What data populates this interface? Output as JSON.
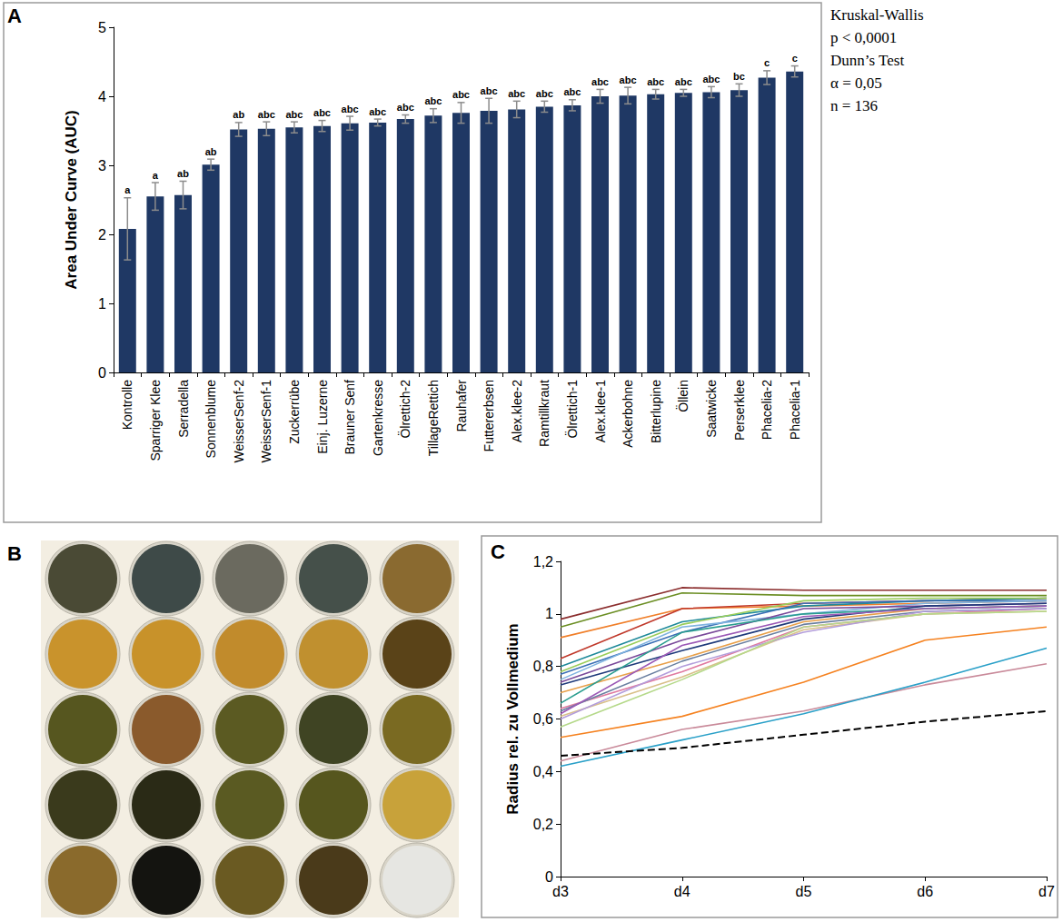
{
  "chart_data": [
    {
      "letter": "A",
      "type": "bar",
      "y_label": "Area Under Curve (AUC)",
      "annotation": [
        "Kruskal-Wallis",
        "p < 0,0001",
        "Dunn’s Test",
        "α = 0,05",
        "n = 136"
      ],
      "categories": [
        "Kontrolle",
        "Sparriger Klee",
        "Serradella",
        "Sonnenblume",
        "WeisserSenf-2",
        "WeisserSenf-1",
        "Zuckerrübe",
        "Einj. Luzerne",
        "Brauner Senf",
        "Gartenkresse",
        "Ölrettich-2",
        "TillageRettich",
        "Rauhafer",
        "Futtererbsen",
        "Alex.klee-2",
        "Ramtillkraut",
        "Ölrettich-1",
        "Alex.klee-1",
        "Ackerbohne",
        "Bitterlupine",
        "Öllein",
        "Saatwicke",
        "Perserklee",
        "Phacelia-2",
        "Phacelia-1"
      ],
      "values": [
        2.08,
        2.55,
        2.57,
        3.01,
        3.52,
        3.53,
        3.55,
        3.57,
        3.61,
        3.62,
        3.67,
        3.72,
        3.76,
        3.79,
        3.81,
        3.85,
        3.87,
        4.0,
        4.01,
        4.03,
        4.05,
        4.06,
        4.09,
        4.27,
        4.36
      ],
      "errors": [
        0.45,
        0.2,
        0.2,
        0.08,
        0.1,
        0.1,
        0.08,
        0.08,
        0.1,
        0.05,
        0.06,
        0.1,
        0.15,
        0.18,
        0.12,
        0.08,
        0.08,
        0.1,
        0.12,
        0.07,
        0.05,
        0.08,
        0.09,
        0.1,
        0.08
      ],
      "significance": [
        "a",
        "a",
        "ab",
        "ab",
        "ab",
        "abc",
        "abc",
        "abc",
        "abc",
        "abc",
        "abc",
        "abc",
        "abc",
        "abc",
        "abc",
        "abc",
        "abc",
        "abc",
        "abc",
        "abc",
        "abc",
        "abc",
        "bc",
        "c",
        "c"
      ],
      "color": "#1f3864",
      "ylim": [
        0,
        5
      ],
      "yticks": [
        0,
        1,
        2,
        3,
        4,
        5
      ],
      "grid": false
    },
    {
      "letter": "B",
      "type": "image",
      "colors": [
        "#4a4a35",
        "#3e4a48",
        "#6b6a5f",
        "#45504a",
        "#8a6a30",
        "#c9932c",
        "#c8922a",
        "#c18b2c",
        "#c0902f",
        "#5a4318",
        "#56561f",
        "#8a5a2c",
        "#5b5a22",
        "#3f4423",
        "#7a6a22",
        "#3a3a1c",
        "#2a2a16",
        "#5a5a22",
        "#56561e",
        "#c8a23a",
        "#8a6a2c",
        "#141410",
        "#6a5a22",
        "#4a3a1a",
        "#e6e6e2"
      ]
    },
    {
      "letter": "C",
      "type": "line",
      "y_label": "Radius rel. zu Vollmedium",
      "categories": [
        "d3",
        "d4",
        "d5",
        "d6",
        "d7"
      ],
      "ylim": [
        0,
        1.2
      ],
      "yticks": [
        0,
        {
          "value": 0.2,
          "label": "0,2"
        },
        {
          "value": 0.4,
          "label": "0,4"
        },
        {
          "value": 0.6,
          "label": "0,6"
        },
        {
          "value": 0.8,
          "label": "0,8"
        },
        1,
        {
          "value": 1.2,
          "label": "1,2"
        }
      ],
      "grid": false,
      "series": [
        {
          "color": "#8b2e2e",
          "values": [
            0.98,
            1.1,
            1.09,
            1.09,
            1.09
          ]
        },
        {
          "color": "#6b8e23",
          "values": [
            0.95,
            1.08,
            1.07,
            1.07,
            1.07
          ]
        },
        {
          "color": "#f07f2a",
          "values": [
            0.91,
            1.02,
            1.03,
            1.04,
            1.05
          ]
        },
        {
          "color": "#c0392b",
          "values": [
            0.83,
            1.02,
            1.04,
            1.05,
            1.06
          ]
        },
        {
          "color": "#1f8a9a",
          "values": [
            0.8,
            0.97,
            1.03,
            1.05,
            1.06
          ]
        },
        {
          "color": "#9acd5a",
          "values": [
            0.78,
            0.96,
            1.05,
            1.06,
            1.06
          ]
        },
        {
          "color": "#3a6fb5",
          "values": [
            0.77,
            0.93,
            1.04,
            1.05,
            1.05
          ]
        },
        {
          "color": "#7fb3e0",
          "values": [
            0.75,
            0.95,
            1.0,
            1.04,
            1.05
          ]
        },
        {
          "color": "#7a4a9a",
          "values": [
            0.74,
            0.9,
            1.02,
            1.03,
            1.04
          ]
        },
        {
          "color": "#1f3a7a",
          "values": [
            0.73,
            0.86,
            0.98,
            1.03,
            1.04
          ]
        },
        {
          "color": "#e8a04a",
          "values": [
            0.7,
            0.83,
            0.97,
            1.02,
            1.03
          ]
        },
        {
          "color": "#2a9d8f",
          "values": [
            0.66,
            0.93,
            1.0,
            1.02,
            1.03
          ]
        },
        {
          "color": "#e07aa0",
          "values": [
            0.64,
            0.78,
            0.95,
            1.0,
            1.02
          ]
        },
        {
          "color": "#6a7fa0",
          "values": [
            0.63,
            0.82,
            0.96,
            1.01,
            1.02
          ]
        },
        {
          "color": "#9b59b6",
          "values": [
            0.62,
            0.88,
            0.99,
            1.02,
            1.03
          ]
        },
        {
          "color": "#d9c08a",
          "values": [
            0.61,
            0.76,
            0.94,
            1.0,
            1.01
          ]
        },
        {
          "color": "#b39ddb",
          "values": [
            0.6,
            0.8,
            0.93,
            1.01,
            1.02
          ]
        },
        {
          "color": "#b5d98a",
          "values": [
            0.57,
            0.75,
            0.95,
            1.0,
            1.01
          ]
        },
        {
          "color": "#f58220",
          "values": [
            0.53,
            0.61,
            0.74,
            0.9,
            0.95
          ]
        },
        {
          "color": "#c98a9a",
          "values": [
            0.44,
            0.56,
            0.63,
            0.73,
            0.81
          ]
        },
        {
          "color": "#2aa0c8",
          "values": [
            0.42,
            0.52,
            0.62,
            0.74,
            0.87
          ]
        },
        {
          "color": "#000000",
          "line_style": "dashed",
          "values": [
            0.46,
            0.49,
            0.54,
            0.59,
            0.63
          ]
        }
      ]
    }
  ]
}
